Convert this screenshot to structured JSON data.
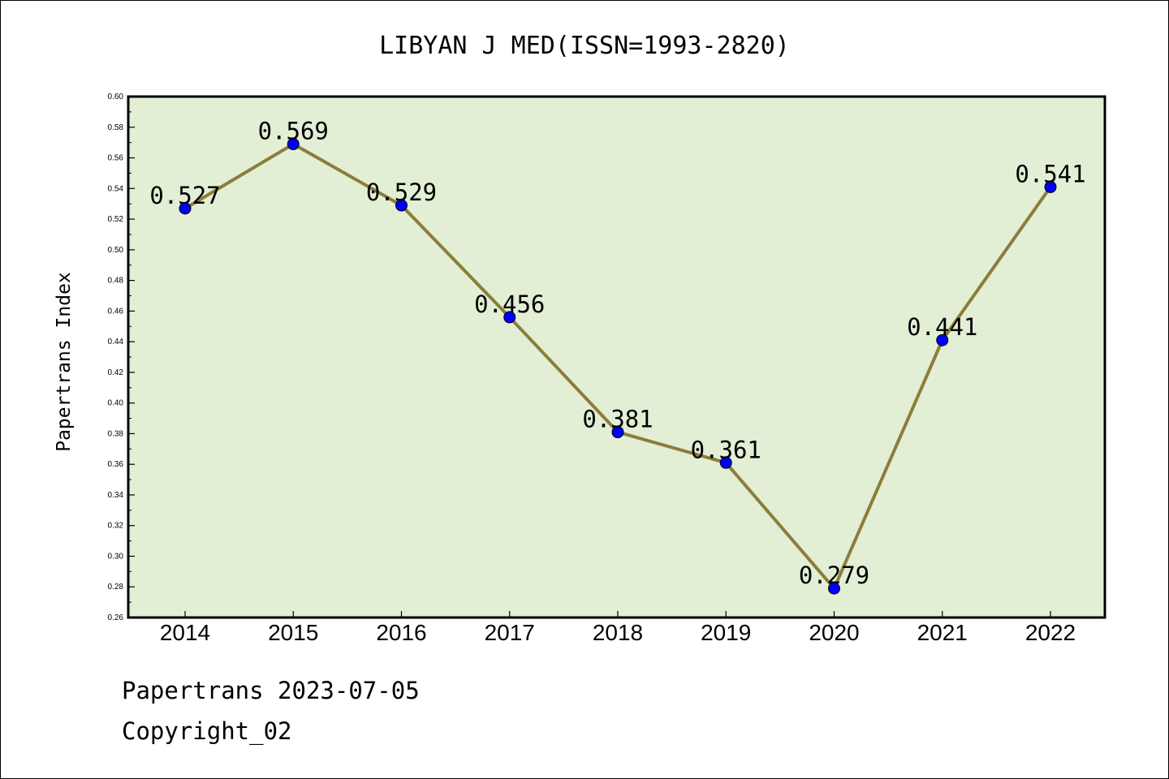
{
  "chart_data": {
    "type": "line",
    "title": "LIBYAN J MED(ISSN=1993-2820)",
    "xlabel": "",
    "ylabel": "Papertrans Index",
    "categories": [
      "2014",
      "2015",
      "2016",
      "2017",
      "2018",
      "2019",
      "2020",
      "2021",
      "2022"
    ],
    "series": [
      {
        "values": [
          0.527,
          0.569,
          0.529,
          0.456,
          0.381,
          0.361,
          0.279,
          0.441,
          0.541
        ],
        "labels": [
          "0.527",
          "0.569",
          "0.529",
          "0.456",
          "0.381",
          "0.361",
          "0.279",
          "0.441",
          "0.541"
        ]
      }
    ],
    "ylim": [
      0.26,
      0.6
    ],
    "yticks": [
      "0.26",
      "0.28",
      "0.30",
      "0.32",
      "0.34",
      "0.36",
      "0.38",
      "0.40",
      "0.42",
      "0.44",
      "0.46",
      "0.48",
      "0.50",
      "0.52",
      "0.54",
      "0.56",
      "0.58",
      "0.60"
    ],
    "grid": false,
    "colors": {
      "plot_background": "#e2efd5",
      "line": "#8b7d3a",
      "marker": "#0000ff"
    }
  },
  "footer": {
    "line1": "Papertrans 2023-07-05",
    "line2": "Copyright_02"
  }
}
